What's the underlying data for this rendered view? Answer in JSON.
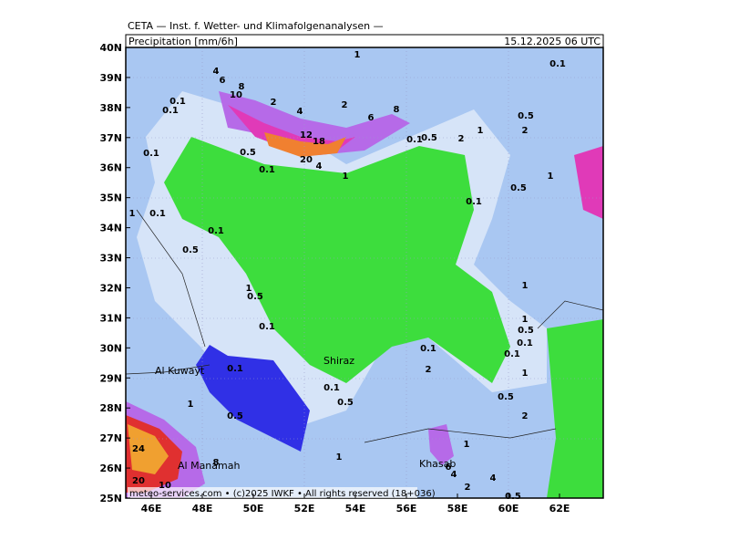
{
  "header": {
    "title": "CETA — Inst. f. Wetter- und Klimafolgenanalysen —",
    "variable": "Precipitation [mm/6h]",
    "valid_time": "15.12.2025 06 UTC"
  },
  "lat_labels": [
    "40N",
    "39N",
    "38N",
    "37N",
    "36N",
    "35N",
    "34N",
    "33N",
    "32N",
    "31N",
    "30N",
    "29N",
    "28N",
    "27N",
    "26N",
    "25N"
  ],
  "lon_labels": [
    "46E",
    "48E",
    "50E",
    "52E",
    "54E",
    "56E",
    "58E",
    "60E",
    "62E"
  ],
  "places": [
    "Al Kuwayt",
    "Shiraz",
    "Al Manamah",
    "Khasab"
  ],
  "contour_labels": [
    "4",
    "6",
    "8",
    "10",
    "2",
    "4",
    "2",
    "6",
    "8",
    "0.1",
    "0.1",
    "0.1",
    "0.5",
    "0.1",
    "12",
    "18",
    "20",
    "4",
    "1",
    "0.1",
    "0.5",
    "2",
    "1",
    "0.5",
    "2",
    "0.1",
    "1",
    "1",
    "0.5",
    "0.1",
    "1",
    "0.1",
    "0.1",
    "0.5",
    "1",
    "0.5",
    "0.1",
    "1",
    "1",
    "0.5",
    "0.1",
    "0.1",
    "0.1",
    "1",
    "2",
    "0.1",
    "0.1",
    "0.5",
    "0.5",
    "1",
    "0.5",
    "2",
    "24",
    "8",
    "1",
    "1",
    "6",
    "4",
    "2",
    "4",
    "20",
    "10",
    "0.5"
  ],
  "footer": "meteo-services.com • (c)2025 IWKF • All rights reserved (18+036)"
}
